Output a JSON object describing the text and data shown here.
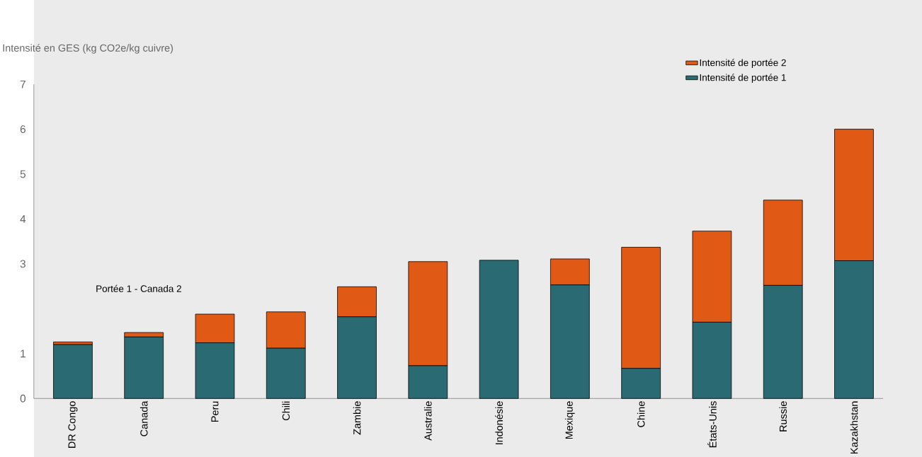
{
  "chart_data": {
    "type": "bar",
    "stacked": true,
    "ylabel": "Intensité en GES (kg CO2e/kg cuivre)",
    "categories": [
      "DR Congo",
      "Canada",
      "Peru",
      "Chili",
      "Zambie",
      "Australie",
      "Indonésie",
      "Mexique",
      "Chine",
      "États-Unis",
      "Russie",
      "Kazakhstan"
    ],
    "series": [
      {
        "name": "Intensité de portée 1",
        "color": "#2a6b73",
        "values": [
          1.2,
          1.37,
          1.24,
          1.12,
          1.82,
          0.73,
          3.08,
          2.53,
          0.67,
          1.7,
          2.52,
          3.07
        ]
      },
      {
        "name": "Intensité de portée 2",
        "color": "#e05a16",
        "values": [
          0.06,
          0.1,
          0.64,
          0.81,
          0.67,
          2.32,
          0,
          0.58,
          2.7,
          2.03,
          1.9,
          2.93
        ]
      }
    ],
    "ylim": [
      0,
      7
    ],
    "yticks": [
      0,
      1,
      3,
      4,
      5,
      6,
      7
    ],
    "annotations": [
      "Portée 1 - Canada 2"
    ],
    "legend": "top right",
    "grid": false
  }
}
